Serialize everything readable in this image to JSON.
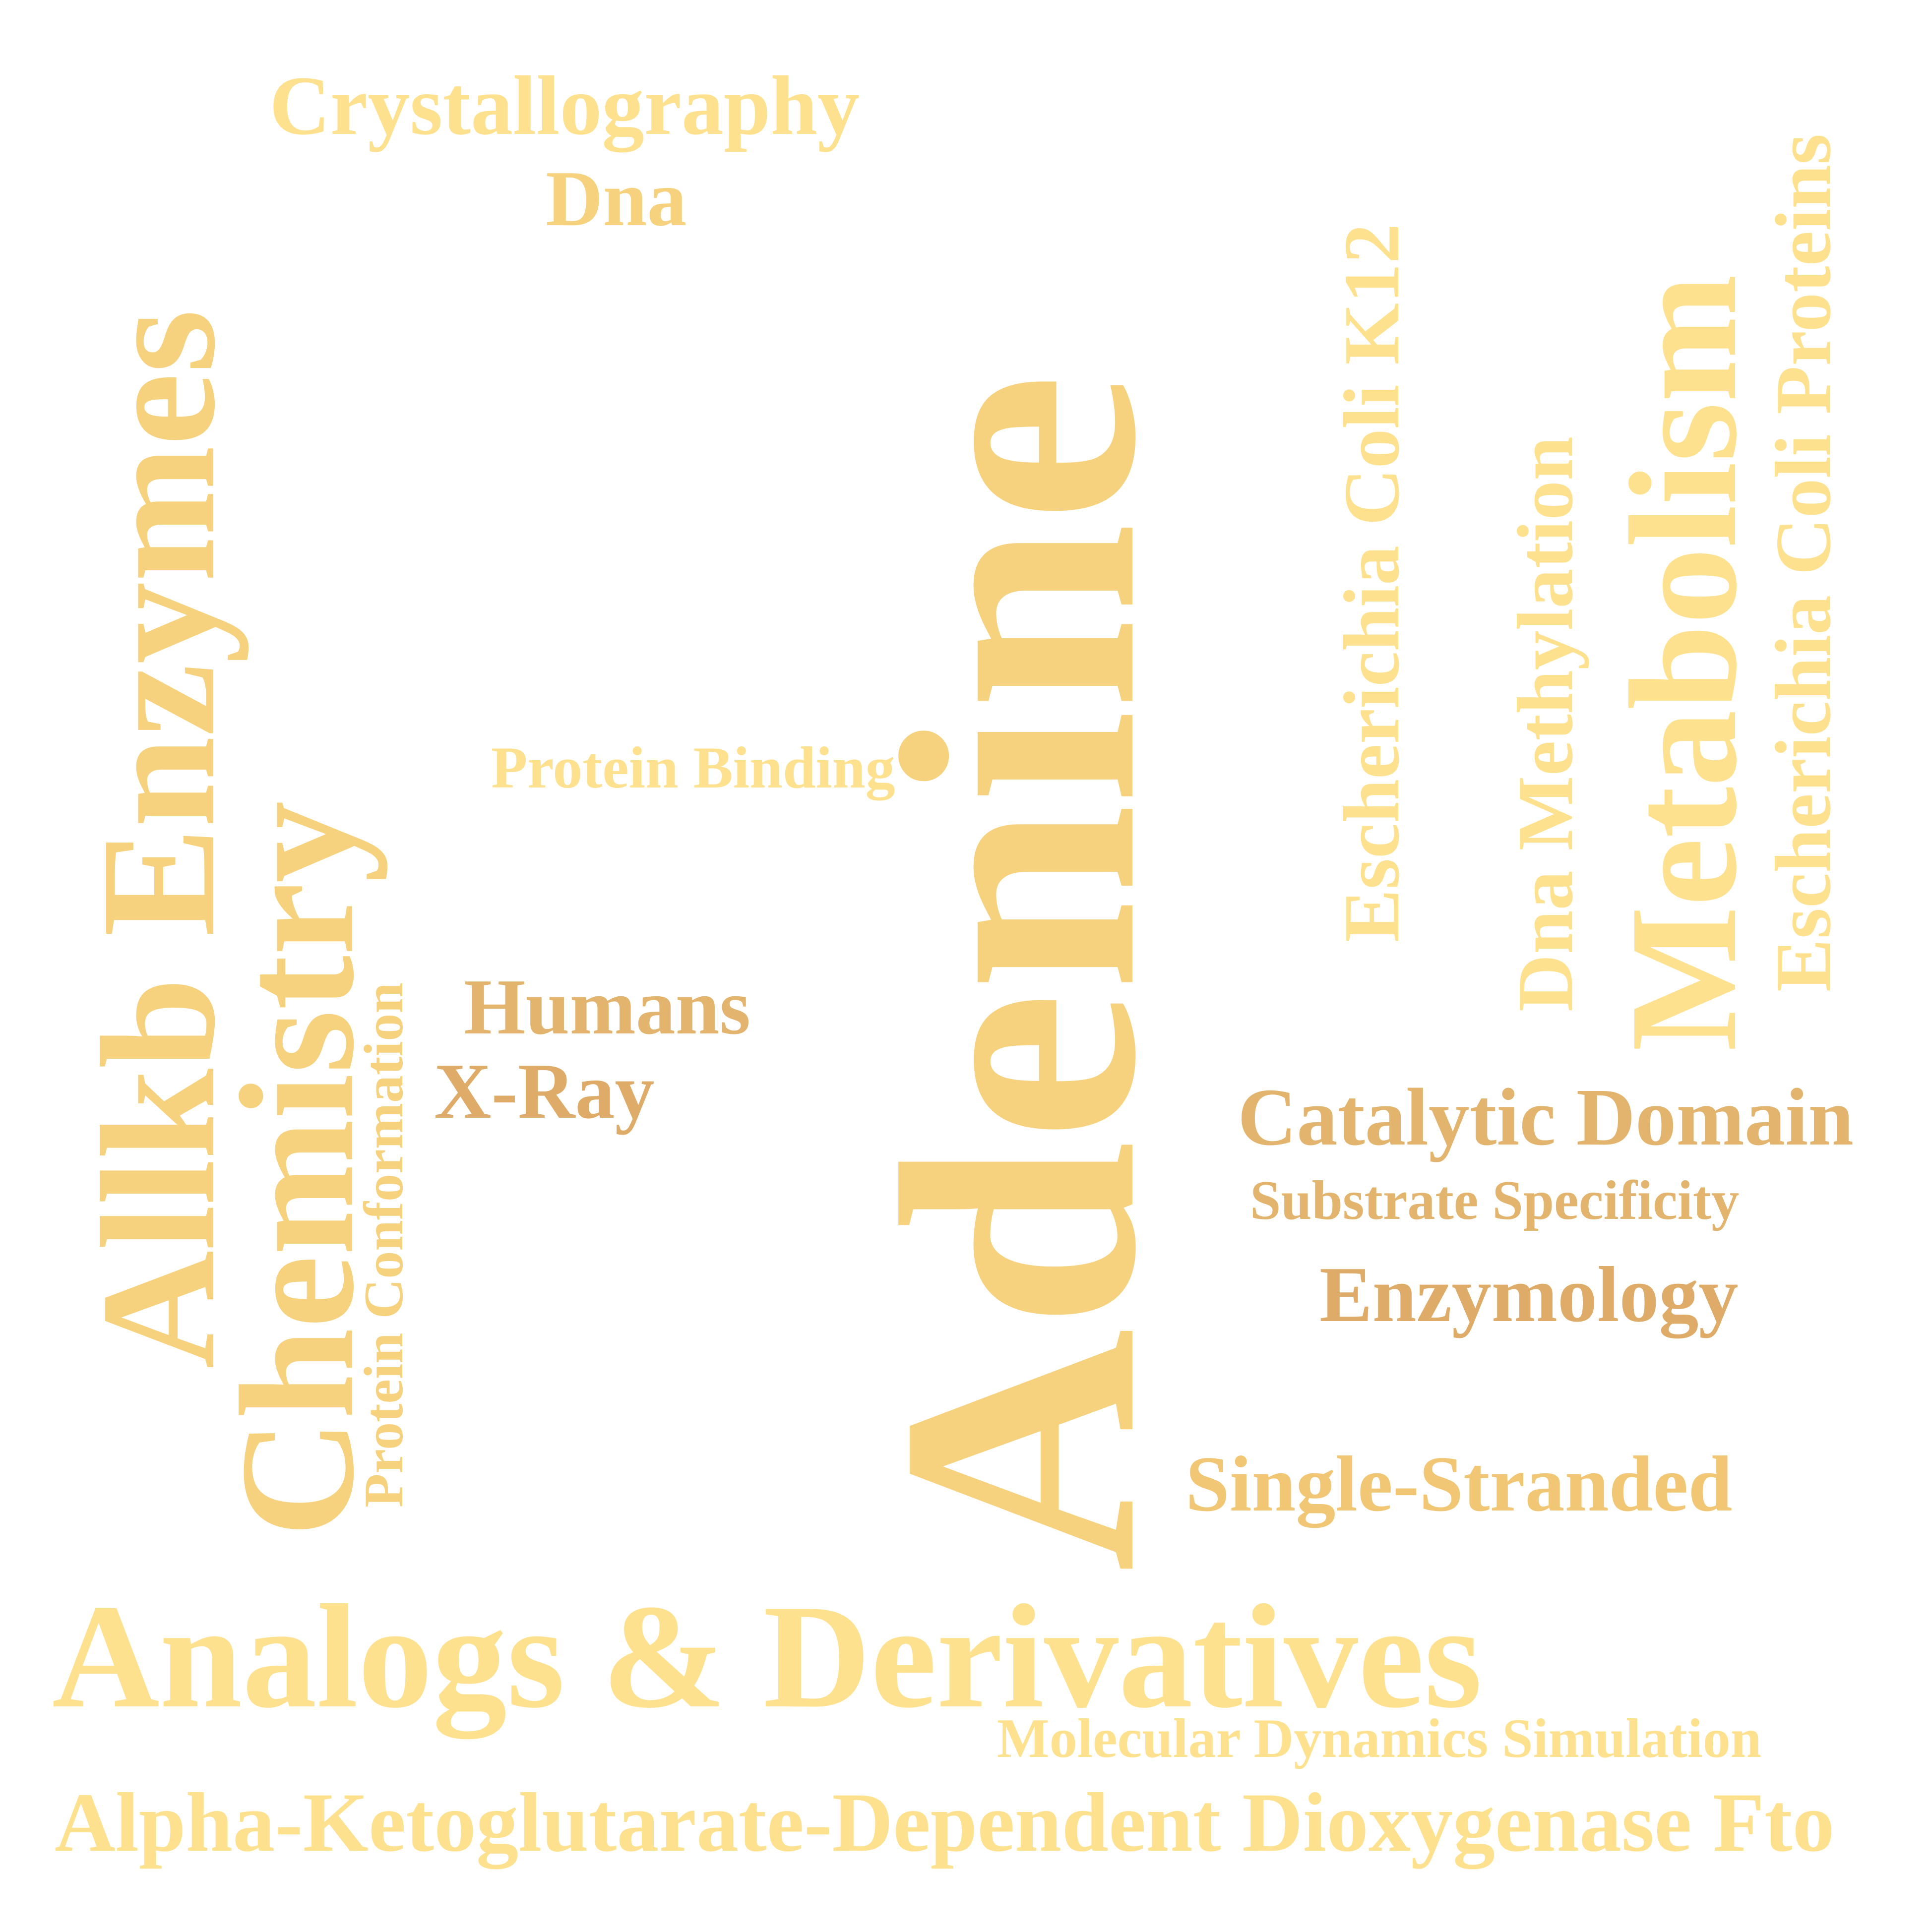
{
  "colors": {
    "background": "#ffffff",
    "light": "#fde18e",
    "mid": "#f6d27f",
    "warm": "#f1c776",
    "deep": "#e2b46e",
    "deeper": "#deac68"
  },
  "words": {
    "crystallography": "Crystallography",
    "dna": "Dna",
    "allkb_enzymes": "Allkb Enzymes",
    "chemistry": "Chemistry",
    "protein_conformation": "Protein Conformation",
    "protein_binding": "Protein Binding",
    "humans": "Humans",
    "x_ray": "X-Ray",
    "adenine": "Adenine",
    "escherichia_coli_k12": "Escherichia Coli K12",
    "dna_methylation": "Dna Methylation",
    "metabolism": "Metabolism",
    "escherichia_coli_proteins": "Escherichia Coli Proteins",
    "catalytic_domain": "Catalytic Domain",
    "substrate_specificity": "Substrate Specificity",
    "enzymology": "Enzymology",
    "single_stranded": "Single-Stranded",
    "analogs_derivatives": "Analogs & Derivatives",
    "molecular_dynamics_simulation": "Molecular Dynamics Simulation",
    "alpha_ketoglutarate": "Alpha-Ketoglutarate-Dependent Dioxygenase Fto"
  }
}
